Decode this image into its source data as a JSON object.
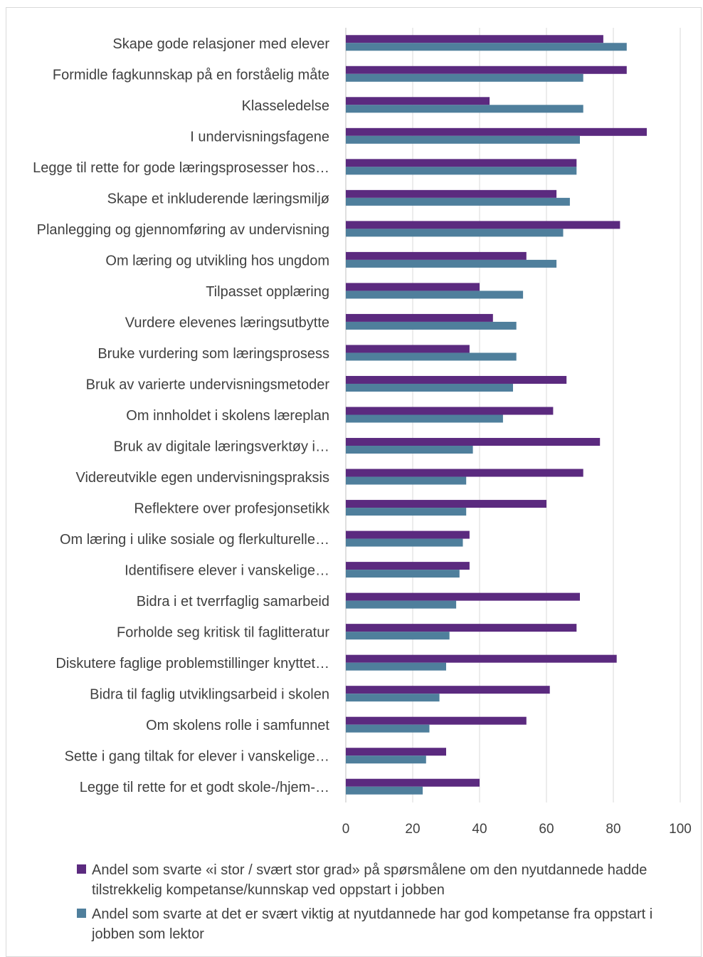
{
  "chart_data": {
    "type": "bar",
    "orientation": "horizontal",
    "categories": [
      "Skape gode relasjoner med elever",
      "Formidle fagkunnskap på en forståelig måte",
      "Klasseledelse",
      "I undervisningsfagene",
      "Legge til rette for gode læringsprosesser hos…",
      "Skape et inkluderende læringsmiljø",
      "Planlegging og gjennomføring av undervisning",
      "Om læring og utvikling hos ungdom",
      "Tilpasset opplæring",
      "Vurdere elevenes læringsutbytte",
      "Bruke vurdering som læringsprosess",
      "Bruk av varierte undervisningsmetoder",
      "Om innholdet i skolens læreplan",
      "Bruk av digitale læringsverktøy i…",
      "Videreutvikle egen undervisningspraksis",
      "Reflektere over profesjonsetikk",
      "Om læring i ulike sosiale og flerkulturelle…",
      "Identifisere elever i vanskelige…",
      "Bidra i et tverrfaglig samarbeid",
      "Forholde seg kritisk til faglitteratur",
      "Diskutere faglige problemstillinger knyttet…",
      "Bidra til faglig utviklingsarbeid i skolen",
      "Om skolens rolle i samfunnet",
      "Sette i gang tiltak for elever i vanskelige…",
      "Legge til rette for et godt skole-/hjem-…"
    ],
    "series": [
      {
        "name": "Andel som svarte «i stor / svært stor grad» på spørsmålene om den nyutdannede hadde tilstrekkelig kompetanse/kunnskap ved oppstart i jobben",
        "color": "#5b2a7f",
        "values": [
          77,
          84,
          43,
          90,
          69,
          63,
          82,
          54,
          40,
          44,
          37,
          66,
          62,
          76,
          71,
          60,
          37,
          37,
          70,
          69,
          81,
          61,
          54,
          30,
          40
        ]
      },
      {
        "name": "Andel som svarte at det er svært viktig at nyutdannede har god kompetanse fra oppstart i jobben som lektor",
        "color": "#4f7f9c",
        "values": [
          84,
          71,
          71,
          70,
          69,
          67,
          65,
          63,
          53,
          51,
          51,
          50,
          47,
          38,
          36,
          36,
          35,
          34,
          33,
          31,
          30,
          28,
          25,
          24,
          23
        ]
      }
    ],
    "xlim": [
      0,
      100
    ],
    "xticks": [
      0,
      20,
      40,
      60,
      80,
      100
    ],
    "grid": true,
    "legend": "bottom"
  }
}
